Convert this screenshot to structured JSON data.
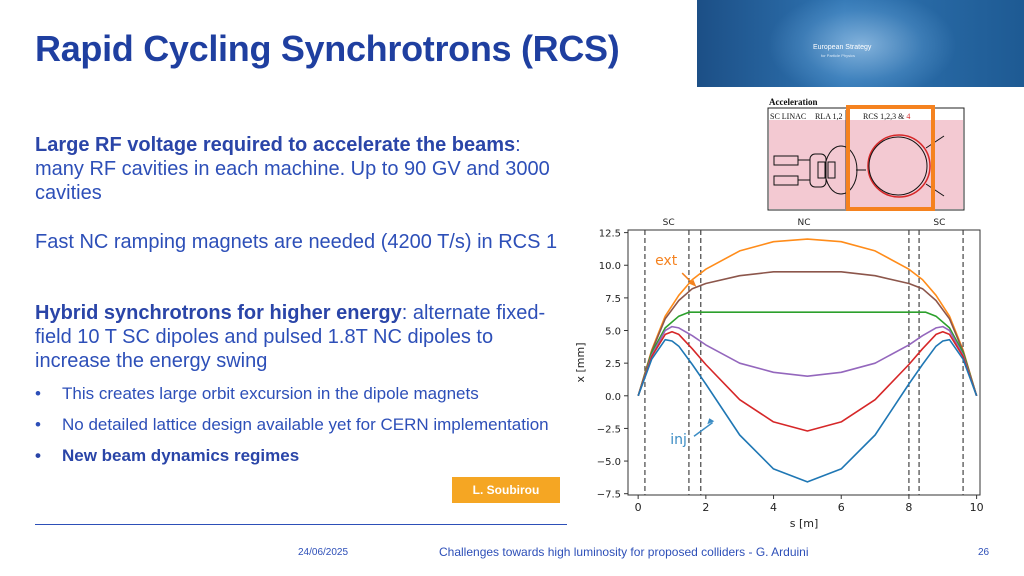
{
  "slide": {
    "title": "Rapid Cycling Synchrotrons (RCS)",
    "p1_bold": "Large RF voltage required to accelerate the beams",
    "p1_rest": ": many RF cavities in each machine. Up to 90 GV and 3000 cavities",
    "p2": "Fast NC ramping magnets are needed (4200 T/s) in RCS 1",
    "p3_bold": "Hybrid synchrotrons for higher energy",
    "p3_rest": ": alternate fixed-field 10 T SC dipoles and pulsed 1.8T NC dipoles to increase the energy swing",
    "bullets": [
      "This creates large orbit excursion in the dipole magnets",
      "No detailed lattice design available yet for CERN implementation",
      "New beam dynamics regimes"
    ],
    "bullet_char": "•",
    "credit": "L. Soubirou"
  },
  "banner": {
    "line1": "European Strategy",
    "line2": "for Particle Physics"
  },
  "diagram": {
    "heading": "Acceleration",
    "label1": "SC LINAC",
    "label2": "RLA 1,2",
    "label3a": "RCS 1,2,3 & ",
    "label3b": "4",
    "highlight_color": "#f5821f"
  },
  "footer": {
    "date": "24/06/2025",
    "title": "Challenges towards high luminosity for proposed colliders - G. Arduini",
    "page": "26"
  },
  "chart_data": {
    "type": "line",
    "xlabel": "s [m]",
    "ylabel": "x [mm]",
    "xlim": [
      -0.3,
      10.1
    ],
    "ylim": [
      -7.6,
      12.7
    ],
    "xticks": [
      0,
      2,
      4,
      6,
      8,
      10
    ],
    "yticks": [
      12.5,
      10.0,
      7.5,
      5.0,
      2.5,
      0.0,
      -2.5,
      -5.0,
      -7.5
    ],
    "ytick_labels": [
      "12.5",
      "10.0",
      "7.5",
      "5.0",
      "2.5",
      "0.0",
      "−2.5",
      "−5.0",
      "−7.5"
    ],
    "section_labels": [
      {
        "text": "SC",
        "x": 0.9
      },
      {
        "text": "NC",
        "x": 4.9
      },
      {
        "text": "SC",
        "x": 8.9
      }
    ],
    "dashed_lines_x": [
      0.2,
      1.5,
      1.85,
      8.0,
      8.3,
      9.6
    ],
    "annotations": {
      "ext": "ext",
      "inj": "inj"
    },
    "colors": {
      "ext": "#f5821f",
      "inj": "#3b8cc4"
    },
    "series": [
      {
        "color": "#ff8c1a",
        "x": [
          0.0,
          0.4,
          0.8,
          1.2,
          1.6,
          2.0,
          3.0,
          4.0,
          5.0,
          6.0,
          7.0,
          8.0,
          8.4,
          8.8,
          9.2,
          9.6,
          10.0
        ],
        "y": [
          0.0,
          3.5,
          6.1,
          7.7,
          8.9,
          9.7,
          11.1,
          11.8,
          12.0,
          11.8,
          11.1,
          9.7,
          8.9,
          7.7,
          6.1,
          3.5,
          0.0
        ]
      },
      {
        "color": "#8c564b",
        "x": [
          0.0,
          0.4,
          0.8,
          1.2,
          1.6,
          2.0,
          3.0,
          4.0,
          5.0,
          6.0,
          7.0,
          8.0,
          8.4,
          8.8,
          9.2,
          9.6,
          10.0
        ],
        "y": [
          0.0,
          3.4,
          5.9,
          7.3,
          8.2,
          8.6,
          9.2,
          9.5,
          9.5,
          9.5,
          9.2,
          8.6,
          8.2,
          7.3,
          5.9,
          3.4,
          0.0
        ]
      },
      {
        "color": "#2ca02c",
        "x": [
          0.0,
          0.4,
          0.8,
          1.2,
          1.5,
          2.0,
          3.0,
          4.0,
          5.0,
          6.0,
          7.0,
          8.0,
          8.5,
          8.8,
          9.2,
          9.6,
          10.0
        ],
        "y": [
          0.0,
          3.3,
          5.2,
          6.1,
          6.4,
          6.4,
          6.4,
          6.4,
          6.4,
          6.4,
          6.4,
          6.4,
          6.4,
          6.1,
          5.2,
          3.3,
          0.0
        ]
      },
      {
        "color": "#9467bd",
        "x": [
          0.0,
          0.4,
          0.8,
          1.0,
          1.2,
          1.6,
          2.0,
          3.0,
          4.0,
          5.0,
          6.0,
          7.0,
          8.0,
          8.4,
          8.8,
          9.0,
          9.2,
          9.6,
          10.0
        ],
        "y": [
          0.0,
          3.1,
          5.0,
          5.3,
          5.2,
          4.6,
          3.9,
          2.5,
          1.8,
          1.5,
          1.8,
          2.5,
          3.9,
          4.6,
          5.2,
          5.3,
          5.0,
          3.1,
          0.0
        ]
      },
      {
        "color": "#d62728",
        "x": [
          0.0,
          0.4,
          0.8,
          1.0,
          1.2,
          1.6,
          2.0,
          3.0,
          4.0,
          5.0,
          6.0,
          7.0,
          8.0,
          8.4,
          8.8,
          9.0,
          9.2,
          9.6,
          10.0
        ],
        "y": [
          0.0,
          3.0,
          4.7,
          4.9,
          4.7,
          3.6,
          2.4,
          -0.3,
          -2.0,
          -2.7,
          -2.0,
          -0.3,
          2.4,
          3.6,
          4.7,
          4.9,
          4.7,
          3.0,
          0.0
        ]
      },
      {
        "color": "#1f77b4",
        "x": [
          0.0,
          0.4,
          0.8,
          1.0,
          1.2,
          1.6,
          2.0,
          3.0,
          4.0,
          5.0,
          6.0,
          7.0,
          8.0,
          8.4,
          8.8,
          9.0,
          9.2,
          9.6,
          10.0
        ],
        "y": [
          0.0,
          2.8,
          4.3,
          4.2,
          3.8,
          2.4,
          0.9,
          -3.0,
          -5.6,
          -6.6,
          -5.6,
          -3.0,
          0.9,
          2.4,
          3.8,
          4.2,
          4.3,
          2.8,
          0.0
        ]
      }
    ]
  }
}
